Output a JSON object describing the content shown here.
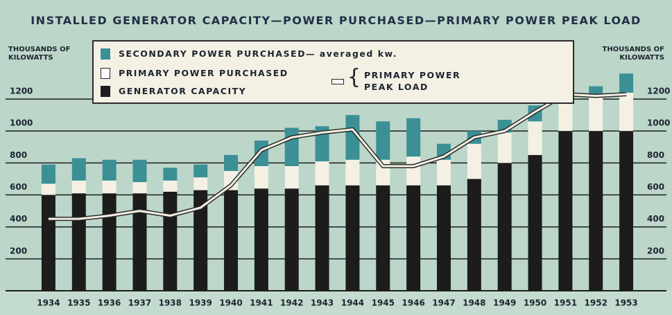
{
  "chart_data": {
    "type": "bar",
    "stacked": true,
    "title": "INSTALLED GENERATOR CAPACITY—POWER PURCHASED—PRIMARY POWER PEAK LOAD",
    "y_label": "THOUSANDS OF KILOWATTS",
    "y2_label": "THOUSANDS OF KILOWATTS",
    "categories": [
      "1934",
      "1935",
      "1936",
      "1937",
      "1938",
      "1939",
      "1940",
      "1941",
      "1942",
      "1943",
      "1944",
      "1945",
      "1946",
      "1947",
      "1948",
      "1949",
      "1950",
      "1951",
      "1952",
      "1953"
    ],
    "series": [
      {
        "name": "GENERATOR CAPACITY",
        "color": "#1c1c1c",
        "values": [
          600,
          610,
          610,
          610,
          620,
          630,
          630,
          640,
          640,
          660,
          660,
          660,
          660,
          660,
          700,
          800,
          850,
          1000,
          1000,
          1000
        ]
      },
      {
        "name": "PRIMARY POWER PURCHASED",
        "color": "#f4f1e4",
        "values": [
          70,
          80,
          80,
          70,
          70,
          80,
          120,
          140,
          140,
          150,
          160,
          160,
          180,
          160,
          220,
          190,
          210,
          210,
          210,
          240
        ]
      },
      {
        "name": "SECONDARY POWER PURCHASED— averaged kw.",
        "color": "#3b9096",
        "values": [
          120,
          140,
          130,
          140,
          80,
          80,
          100,
          160,
          240,
          220,
          280,
          240,
          240,
          100,
          80,
          80,
          100,
          80,
          70,
          120
        ]
      },
      {
        "name": "PRIMARY POWER PEAK LOAD",
        "type": "line",
        "color": "#f4f1e4",
        "values": [
          450,
          450,
          470,
          500,
          470,
          520,
          660,
          880,
          960,
          990,
          1010,
          780,
          780,
          840,
          960,
          1000,
          1120,
          1230,
          1220,
          1230
        ]
      }
    ],
    "ylim": [
      0,
      1300
    ],
    "yticks": [
      200,
      400,
      600,
      800,
      1000,
      1200
    ],
    "y2lim": [
      0,
      1300
    ],
    "y2ticks": [
      200,
      400,
      600,
      800,
      1000,
      1200
    ],
    "grid": true
  }
}
